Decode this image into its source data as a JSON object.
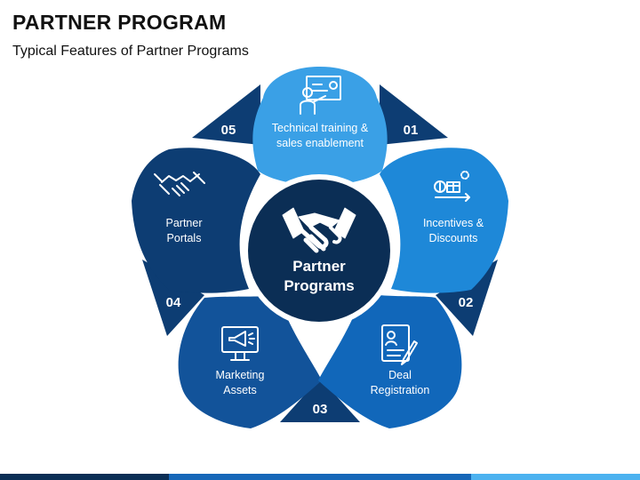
{
  "title": "PARTNER PROGRAM",
  "subtitle": "Typical Features of Partner Programs",
  "center": {
    "line1": "Partner",
    "line2": "Programs",
    "icon": "handshake-icon"
  },
  "items": [
    {
      "number": "01",
      "lines": [
        "Technical training &",
        "sales enablement"
      ],
      "icon": "trainer-presentation-icon",
      "color": "#3AA0E6"
    },
    {
      "number": "02",
      "lines": [
        "Incentives &",
        "Discounts"
      ],
      "icon": "incentives-icon",
      "color": "#1E88D8"
    },
    {
      "number": "03",
      "lines": [
        "Deal",
        "Registration"
      ],
      "icon": "registration-form-icon",
      "color": "#1167BA"
    },
    {
      "number": "04",
      "lines": [
        "Marketing",
        "Assets"
      ],
      "icon": "marketing-monitor-icon",
      "color": "#12539A"
    },
    {
      "number": "05",
      "lines": [
        "Partner",
        "Portals"
      ],
      "icon": "handshake-icon",
      "color": "#0D3D73"
    }
  ],
  "colors": {
    "center": "#0B2E55",
    "triangle": "#0D3D73",
    "bar_dark": "#0B2E55",
    "bar_mid": "#1667B8",
    "bar_light": "#4CB2F0"
  }
}
